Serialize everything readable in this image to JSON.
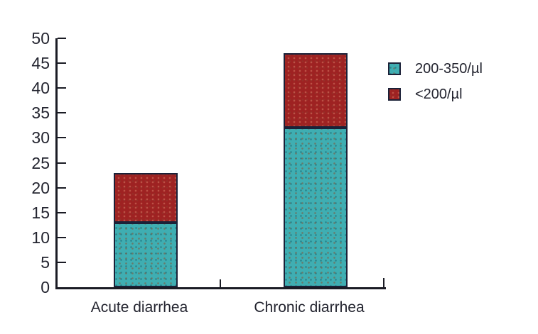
{
  "chart_data": {
    "type": "bar",
    "stacked": true,
    "title": "",
    "xlabel": "",
    "ylabel": "",
    "categories": [
      "Acute diarrhea",
      "Chronic diarrhea"
    ],
    "series": [
      {
        "name": "200-350/µl",
        "color": "#3FAEB2",
        "values": [
          13,
          32
        ]
      },
      {
        "name": "<200/µl",
        "color": "#9E2222",
        "values": [
          10,
          15
        ]
      }
    ],
    "stack_totals": [
      23,
      47
    ],
    "ylim": [
      0,
      50
    ],
    "ytick_step": 5,
    "ytick_labels": [
      "0",
      "5",
      "10",
      "15",
      "20",
      "25",
      "30",
      "35",
      "40",
      "45",
      "50"
    ],
    "grid": false,
    "legend": {
      "position": "right",
      "entries": [
        "200-350/µl",
        "<200/µl"
      ]
    }
  },
  "colors": {
    "teal": "#3FAEB2",
    "red": "#9E2222",
    "axis": "#1a1b24",
    "text": "#23242f",
    "segment_border": "#1b2138",
    "background": "#ffffff"
  }
}
